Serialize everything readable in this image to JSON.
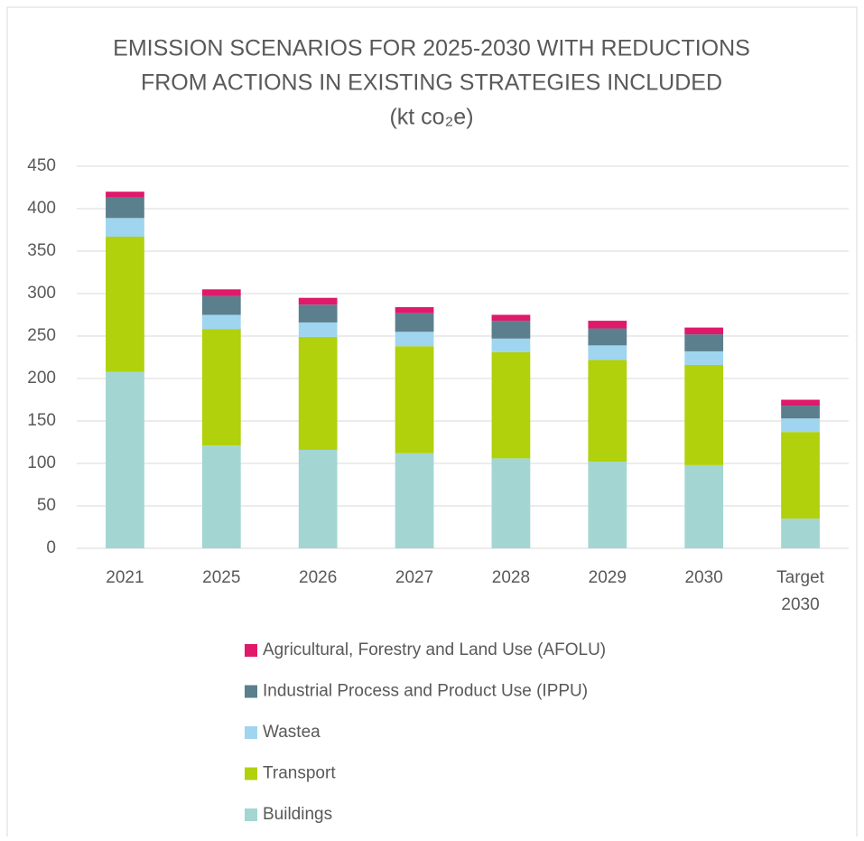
{
  "chart_data": {
    "type": "stacked_bar",
    "title": [
      "EMISSION SCENARIOS FOR 2025-2030 WITH REDUCTIONS",
      "FROM ACTIONS IN EXISTING STRATEGIES INCLUDED",
      "(kt co₂e)"
    ],
    "categories": [
      "2021",
      "2025",
      "2026",
      "2027",
      "2028",
      "2029",
      "2030",
      "Target 2030"
    ],
    "series": [
      {
        "name": "Buildings",
        "color": "#a3d6d2",
        "values": [
          208,
          121,
          116,
          112,
          106,
          102,
          98,
          35
        ]
      },
      {
        "name": "Transport",
        "color": "#b0d10c",
        "values": [
          159,
          137,
          133,
          126,
          125,
          120,
          118,
          102
        ]
      },
      {
        "name": "Wastea",
        "color": "#9fd5ee",
        "values": [
          22,
          17,
          17,
          17,
          16,
          17,
          16,
          16
        ]
      },
      {
        "name": "Industrial Process and Product Use (IPPU)",
        "color": "#5b7f8c",
        "values": [
          24,
          22,
          21,
          22,
          21,
          20,
          20,
          15
        ]
      },
      {
        "name": "Agricultural, Forestry and Land Use (AFOLU)",
        "color": "#e0196b",
        "values": [
          7,
          8,
          8,
          7,
          7,
          9,
          8,
          7
        ]
      }
    ],
    "ylim": [
      0,
      450
    ],
    "yticks": [
      0,
      50,
      100,
      150,
      200,
      250,
      300,
      350,
      400,
      450
    ],
    "grid": true
  }
}
